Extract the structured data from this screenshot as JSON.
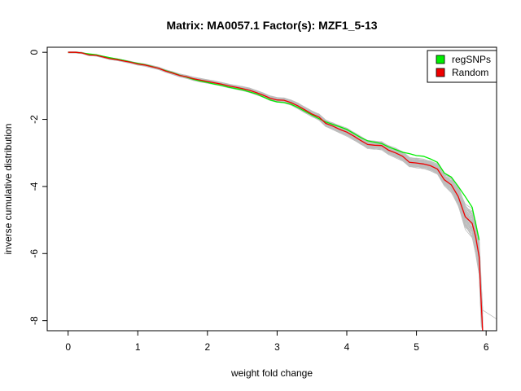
{
  "chart_data": {
    "type": "line",
    "title": "Matrix: MA0057.1 Factor(s): MZF1_5-13",
    "xlabel": "weight fold change",
    "ylabel": "inverse cumulative distribution",
    "xlim": [
      -0.3,
      6.15
    ],
    "ylim": [
      -8.3,
      0.15
    ],
    "xticks": [
      0,
      1,
      2,
      3,
      4,
      5,
      6
    ],
    "yticks": [
      0,
      -2,
      -4,
      -6,
      -8
    ],
    "legend": {
      "position": "top-right",
      "entries": [
        {
          "label": "regSNPs",
          "color": "#00ee00"
        },
        {
          "label": "Random",
          "color": "#ee0000"
        }
      ]
    },
    "background_color": "#bdbdbd",
    "series": [
      {
        "name": "regSNPs",
        "color": "#00ee00",
        "x": [
          0,
          0.1,
          0.2,
          0.3,
          0.4,
          0.5,
          0.6,
          0.7,
          0.8,
          0.9,
          1.0,
          1.1,
          1.2,
          1.3,
          1.4,
          1.5,
          1.6,
          1.7,
          1.8,
          1.9,
          2.0,
          2.1,
          2.2,
          2.3,
          2.4,
          2.5,
          2.6,
          2.7,
          2.8,
          2.9,
          3.0,
          3.1,
          3.2,
          3.3,
          3.4,
          3.5,
          3.6,
          3.7,
          3.8,
          3.9,
          4.0,
          4.1,
          4.2,
          4.3,
          4.4,
          4.5,
          4.6,
          4.7,
          4.8,
          4.9,
          5.0,
          5.1,
          5.2,
          5.3,
          5.4,
          5.5,
          5.6,
          5.7,
          5.8,
          5.85,
          5.9
        ],
        "y": [
          0,
          0,
          -0.02,
          -0.05,
          -0.07,
          -0.12,
          -0.16,
          -0.2,
          -0.24,
          -0.29,
          -0.33,
          -0.37,
          -0.42,
          -0.48,
          -0.55,
          -0.61,
          -0.68,
          -0.74,
          -0.81,
          -0.86,
          -0.9,
          -0.95,
          -0.99,
          -1.04,
          -1.08,
          -1.12,
          -1.18,
          -1.24,
          -1.33,
          -1.42,
          -1.48,
          -1.5,
          -1.55,
          -1.65,
          -1.76,
          -1.87,
          -1.98,
          -2.08,
          -2.15,
          -2.22,
          -2.3,
          -2.42,
          -2.54,
          -2.64,
          -2.68,
          -2.72,
          -2.82,
          -2.9,
          -2.98,
          -3.02,
          -3.08,
          -3.1,
          -3.18,
          -3.28,
          -3.6,
          -3.72,
          -4.0,
          -4.3,
          -4.62,
          -5.1,
          -5.6
        ]
      },
      {
        "name": "Random",
        "color": "#ee0000",
        "x": [
          0,
          0.1,
          0.2,
          0.3,
          0.4,
          0.5,
          0.6,
          0.7,
          0.8,
          0.9,
          1.0,
          1.1,
          1.2,
          1.3,
          1.4,
          1.5,
          1.6,
          1.7,
          1.8,
          1.9,
          2.0,
          2.1,
          2.2,
          2.3,
          2.4,
          2.5,
          2.6,
          2.7,
          2.8,
          2.9,
          3.0,
          3.1,
          3.2,
          3.3,
          3.4,
          3.5,
          3.6,
          3.7,
          3.8,
          3.9,
          4.0,
          4.1,
          4.2,
          4.3,
          4.4,
          4.5,
          4.6,
          4.7,
          4.8,
          4.9,
          5.0,
          5.1,
          5.2,
          5.3,
          5.4,
          5.5,
          5.6,
          5.7,
          5.8,
          5.85,
          5.9,
          5.93,
          5.95
        ],
        "y": [
          0,
          0,
          -0.02,
          -0.08,
          -0.09,
          -0.14,
          -0.19,
          -0.22,
          -0.26,
          -0.3,
          -0.35,
          -0.38,
          -0.43,
          -0.48,
          -0.56,
          -0.62,
          -0.69,
          -0.73,
          -0.79,
          -0.83,
          -0.87,
          -0.91,
          -0.95,
          -1.0,
          -1.04,
          -1.08,
          -1.13,
          -1.2,
          -1.28,
          -1.37,
          -1.42,
          -1.43,
          -1.5,
          -1.6,
          -1.72,
          -1.84,
          -1.93,
          -2.12,
          -2.2,
          -2.3,
          -2.38,
          -2.5,
          -2.63,
          -2.75,
          -2.77,
          -2.78,
          -2.92,
          -3.0,
          -3.1,
          -3.28,
          -3.3,
          -3.33,
          -3.38,
          -3.48,
          -3.8,
          -3.95,
          -4.3,
          -4.9,
          -5.1,
          -5.5,
          -6.1,
          -7.5,
          -8.3
        ]
      }
    ]
  }
}
